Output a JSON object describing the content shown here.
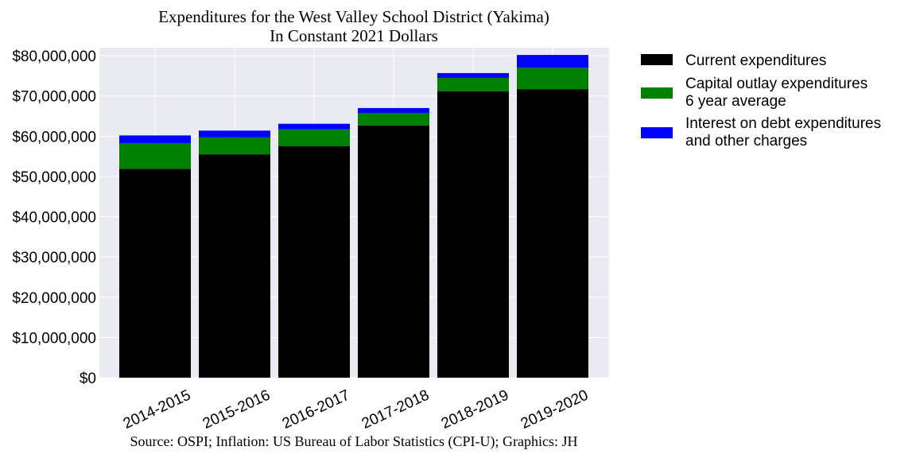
{
  "chart_data": {
    "type": "bar",
    "stacked": true,
    "title": "Expenditures for the West Valley School District (Yakima)",
    "subtitle": "In Constant 2021 Dollars",
    "source": "Source: OSPI; Inflation: US Bureau of Labor Statistics (CPI-U); Graphics: JH",
    "xlabel": "",
    "ylabel": "",
    "categories": [
      "2014-2015",
      "2015-2016",
      "2016-2017",
      "2017-2018",
      "2018-2019",
      "2019-2020"
    ],
    "ylim": [
      0,
      82000000
    ],
    "yticks": [
      0,
      10000000,
      20000000,
      30000000,
      40000000,
      50000000,
      60000000,
      70000000,
      80000000
    ],
    "ytick_labels": [
      "$0",
      "$10,000,000",
      "$20,000,000",
      "$30,000,000",
      "$40,000,000",
      "$50,000,000",
      "$60,000,000",
      "$70,000,000",
      "$80,000,000"
    ],
    "grid": true,
    "legend_position": "outside-right-top",
    "series": [
      {
        "name": "Current expenditures",
        "color": "#000000",
        "values": [
          51900000,
          55500000,
          57500000,
          62700000,
          71200000,
          71700000
        ]
      },
      {
        "name": "Capital outlay expenditures 6 year average",
        "name_lines": [
          "Capital outlay expenditures",
          "6 year average"
        ],
        "color": "#008000",
        "values": [
          6400000,
          4200000,
          4200000,
          3100000,
          3300000,
          5300000
        ]
      },
      {
        "name": "Interest on debt expenditures and other charges",
        "name_lines": [
          "Interest on debt expenditures",
          "and other charges"
        ],
        "color": "#0000ff",
        "values": [
          1900000,
          1700000,
          1400000,
          1200000,
          1200000,
          3200000
        ]
      }
    ]
  }
}
